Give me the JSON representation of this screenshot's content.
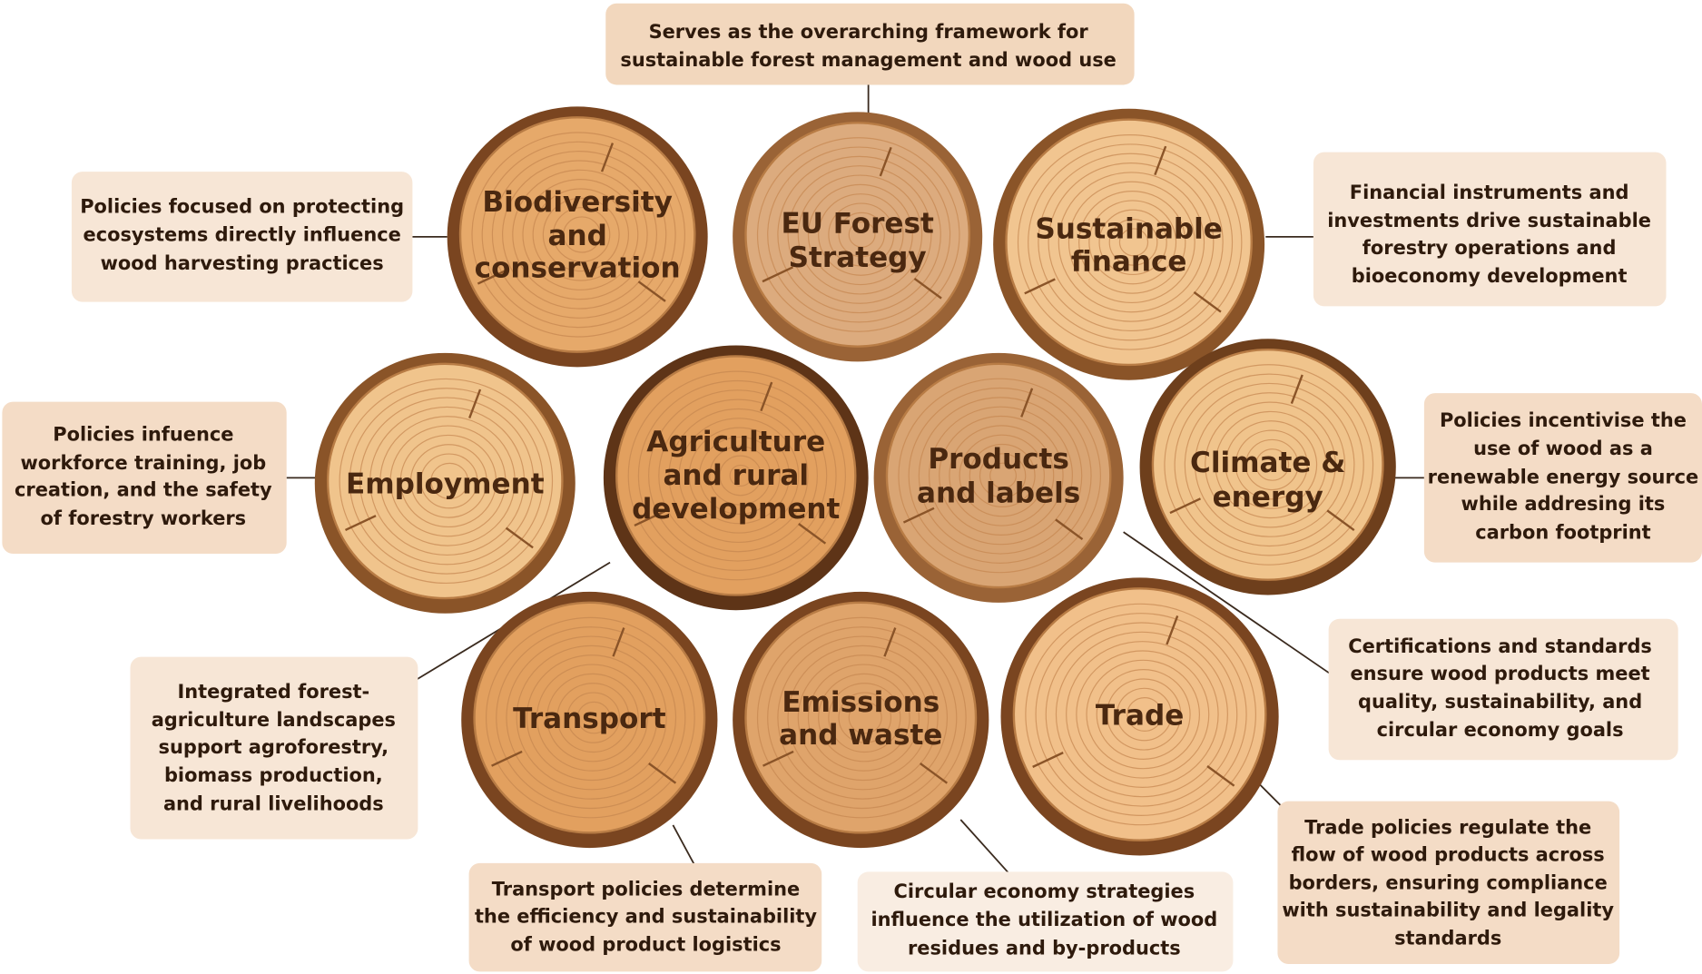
{
  "nodes": [
    {
      "label": [
        "Biodiversity",
        "and",
        "conservation"
      ],
      "description": [
        "Policies focused on protecting",
        "ecosystems directly influence",
        "wood harvesting practices"
      ]
    },
    {
      "label": [
        "EU Forest",
        "Strategy"
      ],
      "description": [
        "Serves as the overarching framework for",
        "sustainable forest management and wood use"
      ]
    },
    {
      "label": [
        "Sustainable",
        "finance"
      ],
      "description": [
        "Financial instruments and",
        "investments drive sustainable",
        "forestry operations and",
        "bioeconomy development"
      ]
    },
    {
      "label": [
        "Employment"
      ],
      "description": [
        "Policies infuence",
        "workforce training, job",
        "creation, and the safety",
        "of forestry workers"
      ]
    },
    {
      "label": [
        "Agriculture",
        "and rural",
        "development"
      ],
      "description": [
        "Integrated forest-",
        "agriculture landscapes",
        "support agroforestry,",
        "biomass production,",
        "and rural livelihoods"
      ]
    },
    {
      "label": [
        "Products",
        "and labels"
      ],
      "description": [
        "Certifications and standards",
        "ensure wood products meet",
        "quality, sustainability, and",
        "circular economy goals"
      ]
    },
    {
      "label": [
        "Climate &",
        "energy"
      ],
      "description": [
        "Policies incentivise the",
        "use of wood as a",
        "renewable energy source",
        "while addresing its",
        "carbon footprint"
      ]
    },
    {
      "label": [
        "Transport"
      ],
      "description": [
        "Transport policies determine",
        "the efficiency and sustainability",
        "of wood product logistics"
      ]
    },
    {
      "label": [
        "Emissions",
        "and waste"
      ],
      "description": [
        "Circular economy strategies",
        "influence the utilization of wood",
        "residues and by-products"
      ]
    },
    {
      "label": [
        "Trade"
      ],
      "description": [
        "Trade policies regulate the",
        "flow of wood products across",
        "borders, ensuring compliance",
        "with sustainability and legality",
        "standards"
      ]
    }
  ]
}
